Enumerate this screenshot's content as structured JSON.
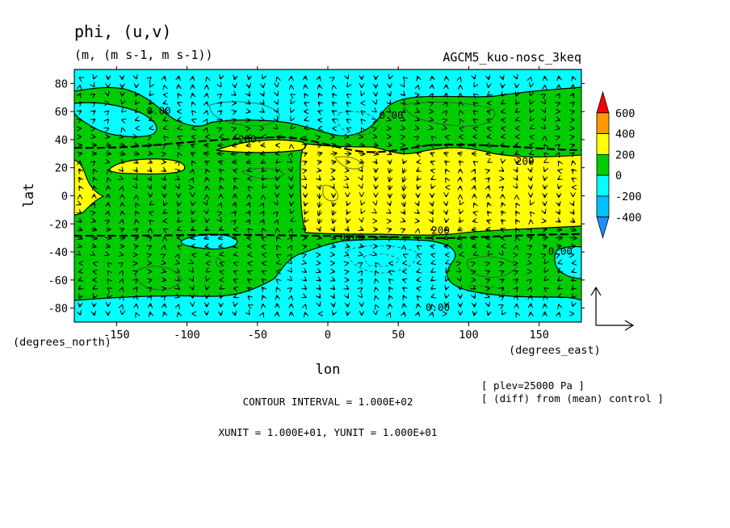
{
  "chart_data": {
    "type": "heatmap",
    "title": "phi, (u,v)",
    "units": "(m, (m s-1, m s-1))",
    "experiment": "AGCM5_kuo-nosc_3keq",
    "xlabel": "lon",
    "ylabel": "lat",
    "xunits": "(degrees_east)",
    "yunits": "(degrees_north)",
    "xlim": [
      -180,
      180
    ],
    "ylim": [
      -90,
      90
    ],
    "x_ticks": [
      -150,
      -100,
      -50,
      0,
      50,
      100,
      150
    ],
    "x_tick_labels": [
      "-150",
      "-100",
      "-50",
      "0",
      "50",
      "100",
      "150"
    ],
    "y_ticks": [
      80,
      60,
      40,
      20,
      0,
      -20,
      -40,
      -60,
      -80
    ],
    "y_tick_labels": [
      "80",
      "60",
      "40",
      "20",
      "0",
      "-20",
      "-40",
      "-60",
      "-80"
    ],
    "colorbar": {
      "levels": [
        "600",
        "400",
        "200",
        "0",
        "-200",
        "-400"
      ],
      "bins": [
        {
          "range": "< -400",
          "color": "#1e90ff"
        },
        {
          "range": "-400 to -200",
          "color": "#00c0ff"
        },
        {
          "range": "-200 to 0",
          "color": "#00ffff"
        },
        {
          "range": "0 to 200",
          "color": "#00cc00"
        },
        {
          "range": "200 to 400",
          "color": "#ffff00"
        },
        {
          "range": "400 to 600",
          "color": "#ff9900"
        },
        {
          "range": "> 600",
          "color": "#ff0000"
        }
      ]
    },
    "contour_labels": [
      {
        "text": "0.00",
        "lon": -120,
        "lat": 58
      },
      {
        "text": "200.",
        "lon": -55,
        "lat": 38
      },
      {
        "text": "0.00",
        "lon": 45,
        "lat": 55
      },
      {
        "text": "200",
        "lon": 140,
        "lat": 22
      },
      {
        "text": "200",
        "lon": 80,
        "lat": -27
      },
      {
        "text": "0.00",
        "lon": 17,
        "lat": -32
      },
      {
        "text": "0.00",
        "lon": 165,
        "lat": -42
      },
      {
        "text": "0.00",
        "lon": 78,
        "lat": -82
      }
    ],
    "contour_interval": "CONTOUR INTERVAL = 1.000E+02",
    "vector_units": "XUNIT = 1.000E+01, YUNIT = 1.000E+01",
    "plev": "[ plev=25000 Pa ]",
    "diff_note": "[ (diff) from (mean) control ]"
  }
}
